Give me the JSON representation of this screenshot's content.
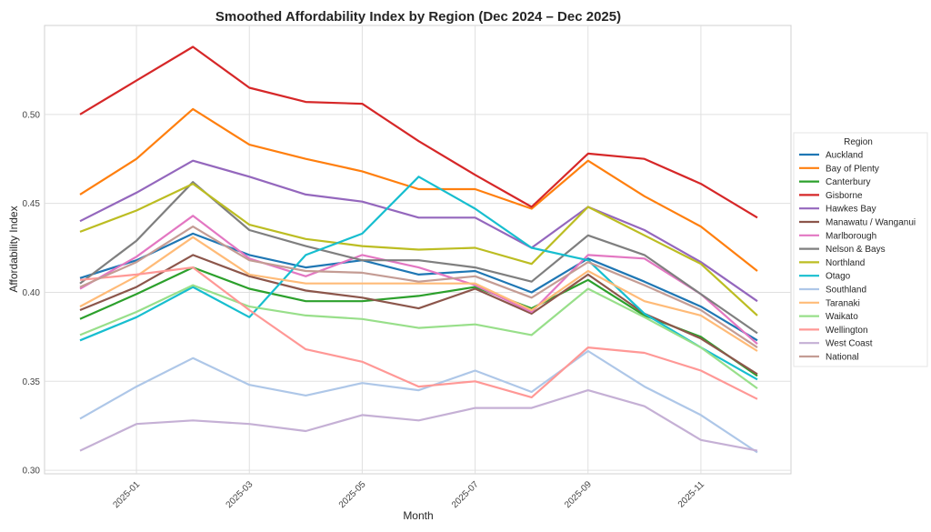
{
  "chart_data": {
    "type": "line",
    "title": "Smoothed Affordability Index by Region (Dec 2024 – Dec 2025)",
    "xlabel": "Month",
    "ylabel": "Affordability Index",
    "x": [
      "2024-12",
      "2025-01",
      "2025-02",
      "2025-03",
      "2025-04",
      "2025-05",
      "2025-06",
      "2025-07",
      "2025-08",
      "2025-09",
      "2025-10",
      "2025-11",
      "2025-12"
    ],
    "x_tick_labels": [
      "2025-01",
      "2025-03",
      "2025-05",
      "2025-07",
      "2025-09",
      "2025-11"
    ],
    "x_tick_months": [
      "2025-01",
      "2025-03",
      "2025-05",
      "2025-07",
      "2025-09",
      "2025-11"
    ],
    "y_ticks": [
      "0.30",
      "0.35",
      "0.40",
      "0.45",
      "0.50"
    ],
    "ylim": [
      0.298,
      0.55
    ],
    "grid": true,
    "legend": {
      "title": "Region",
      "placement": "right"
    },
    "series": [
      {
        "name": "Auckland",
        "color": "#1f77b4",
        "values": [
          0.408,
          0.418,
          0.433,
          0.421,
          0.414,
          0.418,
          0.41,
          0.412,
          0.4,
          0.419,
          0.406,
          0.392,
          0.373
        ]
      },
      {
        "name": "Bay of Plenty",
        "color": "#ff7f0e",
        "values": [
          0.455,
          0.475,
          0.503,
          0.483,
          0.475,
          0.468,
          0.458,
          0.458,
          0.447,
          0.474,
          0.454,
          0.437,
          0.412
        ]
      },
      {
        "name": "Canterbury",
        "color": "#2ca02c",
        "values": [
          0.385,
          0.399,
          0.414,
          0.402,
          0.395,
          0.395,
          0.398,
          0.403,
          0.391,
          0.407,
          0.387,
          0.375,
          0.353
        ]
      },
      {
        "name": "Gisborne",
        "color": "#d62728",
        "values": [
          0.5,
          0.519,
          0.538,
          0.515,
          0.507,
          0.506,
          0.485,
          0.466,
          0.448,
          0.478,
          0.475,
          0.461,
          0.442
        ]
      },
      {
        "name": "Hawkes Bay",
        "color": "#9467bd",
        "values": [
          0.44,
          0.456,
          0.474,
          0.465,
          0.455,
          0.451,
          0.442,
          0.442,
          0.425,
          0.448,
          0.435,
          0.417,
          0.395
        ]
      },
      {
        "name": "Manawatu / Wanganui",
        "color": "#8c564b",
        "values": [
          0.39,
          0.403,
          0.421,
          0.409,
          0.401,
          0.397,
          0.391,
          0.402,
          0.388,
          0.41,
          0.388,
          0.374,
          0.354
        ]
      },
      {
        "name": "Marlborough",
        "color": "#e377c2",
        "values": [
          0.402,
          0.42,
          0.443,
          0.419,
          0.409,
          0.421,
          0.414,
          0.404,
          0.389,
          0.421,
          0.419,
          0.399,
          0.371
        ]
      },
      {
        "name": "Nelson & Bays",
        "color": "#7f7f7f",
        "values": [
          0.405,
          0.429,
          0.462,
          0.435,
          0.426,
          0.418,
          0.418,
          0.414,
          0.406,
          0.432,
          0.421,
          0.399,
          0.377
        ]
      },
      {
        "name": "Northland",
        "color": "#bcbd22",
        "values": [
          0.434,
          0.446,
          0.461,
          0.438,
          0.43,
          0.426,
          0.424,
          0.425,
          0.416,
          0.448,
          0.432,
          0.416,
          0.387
        ]
      },
      {
        "name": "Otago",
        "color": "#17becf",
        "values": [
          0.373,
          0.386,
          0.403,
          0.386,
          0.421,
          0.433,
          0.465,
          0.447,
          0.425,
          0.418,
          0.388,
          0.369,
          0.351
        ]
      },
      {
        "name": "Southland",
        "color": "#aec7e8",
        "values": [
          0.329,
          0.347,
          0.363,
          0.348,
          0.342,
          0.349,
          0.345,
          0.356,
          0.344,
          0.367,
          0.347,
          0.331,
          0.31
        ]
      },
      {
        "name": "Taranaki",
        "color": "#ffbb78",
        "values": [
          0.392,
          0.409,
          0.431,
          0.41,
          0.405,
          0.405,
          0.405,
          0.405,
          0.39,
          0.412,
          0.395,
          0.387,
          0.367
        ]
      },
      {
        "name": "Waikato",
        "color": "#98df8a",
        "values": [
          0.376,
          0.389,
          0.404,
          0.392,
          0.387,
          0.385,
          0.38,
          0.382,
          0.376,
          0.402,
          0.386,
          0.369,
          0.346
        ]
      },
      {
        "name": "Wellington",
        "color": "#ff9896",
        "values": [
          0.407,
          0.41,
          0.414,
          0.39,
          0.368,
          0.361,
          0.347,
          0.35,
          0.341,
          0.369,
          0.366,
          0.356,
          0.34
        ]
      },
      {
        "name": "West Coast",
        "color": "#c5b0d5",
        "values": [
          0.311,
          0.326,
          0.328,
          0.326,
          0.322,
          0.331,
          0.328,
          0.335,
          0.335,
          0.345,
          0.336,
          0.317,
          0.311
        ]
      },
      {
        "name": "National",
        "color": "#c49c94",
        "values": [
          0.403,
          0.417,
          0.437,
          0.418,
          0.412,
          0.411,
          0.406,
          0.409,
          0.397,
          0.417,
          0.404,
          0.39,
          0.369
        ]
      }
    ]
  }
}
